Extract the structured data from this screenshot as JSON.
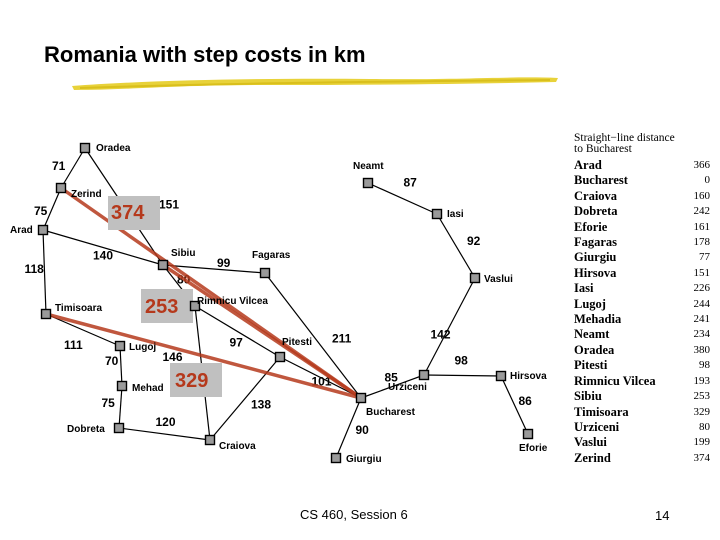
{
  "title": "Romania with step costs in km",
  "footer": "CS 460,  Session 6",
  "page_number": "14",
  "highlight_color": "#b5391c",
  "cities": [
    {
      "id": "oradea",
      "name": "Oradea"
    },
    {
      "id": "zerind",
      "name": "Zerind"
    },
    {
      "id": "arad",
      "name": "Arad"
    },
    {
      "id": "timisoara",
      "name": "Timisoara"
    },
    {
      "id": "lugoj",
      "name": "Lugoj"
    },
    {
      "id": "mehadia",
      "name": "Mehad"
    },
    {
      "id": "dobreta",
      "name": "Dobreta"
    },
    {
      "id": "craiova",
      "name": "Craiova"
    },
    {
      "id": "sibiu",
      "name": "Sibiu"
    },
    {
      "id": "fagaras",
      "name": "Fagaras"
    },
    {
      "id": "rimnicu",
      "name": "Rimnicu Vilcea"
    },
    {
      "id": "pitesti",
      "name": "Pitesti"
    },
    {
      "id": "bucharest",
      "name": "Bucharest"
    },
    {
      "id": "giurgiu",
      "name": "Giurgiu"
    },
    {
      "id": "urziceni",
      "name": "Urziceni"
    },
    {
      "id": "hirsova",
      "name": "Hirsova"
    },
    {
      "id": "eforie",
      "name": "Eforie"
    },
    {
      "id": "vaslui",
      "name": "Vaslui"
    },
    {
      "id": "iasi",
      "name": "Iasi"
    },
    {
      "id": "neamt",
      "name": "Neamt"
    }
  ],
  "roads": [
    {
      "from": "oradea",
      "to": "zerind",
      "cost": "71"
    },
    {
      "from": "zerind",
      "to": "arad",
      "cost": "75"
    },
    {
      "from": "oradea",
      "to": "sibiu",
      "cost": "151"
    },
    {
      "from": "arad",
      "to": "sibiu",
      "cost": "140"
    },
    {
      "from": "arad",
      "to": "timisoara",
      "cost": "118"
    },
    {
      "from": "timisoara",
      "to": "lugoj",
      "cost": "111"
    },
    {
      "from": "lugoj",
      "to": "mehadia",
      "cost": "70"
    },
    {
      "from": "mehadia",
      "to": "dobreta",
      "cost": "75"
    },
    {
      "from": "dobreta",
      "to": "craiova",
      "cost": "120"
    },
    {
      "from": "sibiu",
      "to": "fagaras",
      "cost": "99"
    },
    {
      "from": "sibiu",
      "to": "rimnicu",
      "cost": "80"
    },
    {
      "from": "rimnicu",
      "to": "pitesti",
      "cost": "97"
    },
    {
      "from": "rimnicu",
      "to": "craiova",
      "cost": "146"
    },
    {
      "from": "craiova",
      "to": "pitesti",
      "cost": "138"
    },
    {
      "from": "fagaras",
      "to": "bucharest",
      "cost": "211"
    },
    {
      "from": "pitesti",
      "to": "bucharest",
      "cost": "101"
    },
    {
      "from": "bucharest",
      "to": "giurgiu",
      "cost": "90"
    },
    {
      "from": "bucharest",
      "to": "urziceni",
      "cost": "85"
    },
    {
      "from": "urziceni",
      "to": "hirsova",
      "cost": "98"
    },
    {
      "from": "hirsova",
      "to": "eforie",
      "cost": "86"
    },
    {
      "from": "urziceni",
      "to": "vaslui",
      "cost": "142"
    },
    {
      "from": "vaslui",
      "to": "iasi",
      "cost": "92"
    },
    {
      "from": "iasi",
      "to": "neamt",
      "cost": "87"
    }
  ],
  "highlights": [
    {
      "from": "zerind",
      "to": "bucharest",
      "value": "374"
    },
    {
      "from": "sibiu",
      "to": "bucharest",
      "value": "253"
    },
    {
      "from": "timisoara",
      "to": "bucharest",
      "value": "329"
    }
  ],
  "sld_table": {
    "heading_line1": "Straight−line distance",
    "heading_line2": "to Bucharest",
    "rows": [
      {
        "city": "Arad",
        "value": "366"
      },
      {
        "city": "Bucharest",
        "value": "0"
      },
      {
        "city": "Craiova",
        "value": "160"
      },
      {
        "city": "Dobreta",
        "value": "242"
      },
      {
        "city": "Eforie",
        "value": "161"
      },
      {
        "city": "Fagaras",
        "value": "178"
      },
      {
        "city": "Giurgiu",
        "value": "77"
      },
      {
        "city": "Hirsova",
        "value": "151"
      },
      {
        "city": "Iasi",
        "value": "226"
      },
      {
        "city": "Lugoj",
        "value": "244"
      },
      {
        "city": "Mehadia",
        "value": "241"
      },
      {
        "city": "Neamt",
        "value": "234"
      },
      {
        "city": "Oradea",
        "value": "380"
      },
      {
        "city": "Pitesti",
        "value": "98"
      },
      {
        "city": "Rimnicu Vilcea",
        "value": "193"
      },
      {
        "city": "Sibiu",
        "value": "253"
      },
      {
        "city": "Timisoara",
        "value": "329"
      },
      {
        "city": "Urziceni",
        "value": "80"
      },
      {
        "city": "Vaslui",
        "value": "199"
      },
      {
        "city": "Zerind",
        "value": "374"
      }
    ]
  }
}
